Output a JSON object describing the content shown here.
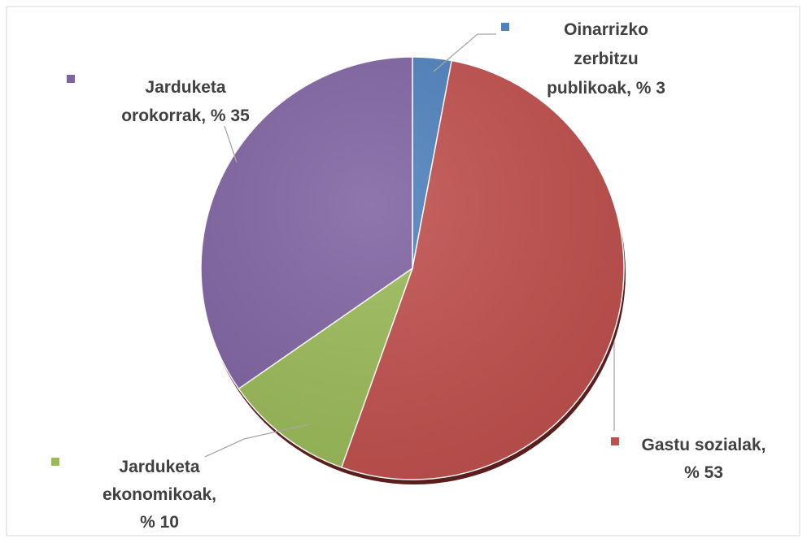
{
  "chart_data": {
    "type": "pie",
    "value_labels": [
      "Oinarrizko zerbitzu publikoak, % 3",
      "Gastu sozialak, % 53",
      "Jarduketa ekonomikoak, % 10",
      "Jarduketa orokorrak, % 35"
    ],
    "values": [
      3,
      53,
      10,
      35
    ],
    "colors": [
      "#4f81bd",
      "#c0504d",
      "#9bbb59",
      "#8064a2"
    ]
  }
}
